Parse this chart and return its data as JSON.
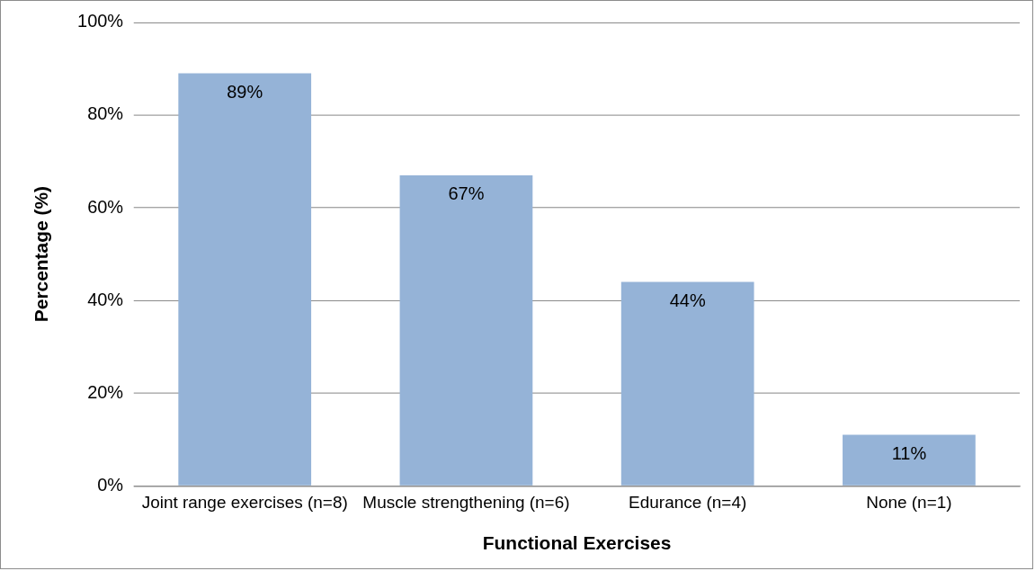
{
  "chart_data": {
    "type": "bar",
    "xlabel": "Functional Exercises",
    "ylabel": "Percentage (%)",
    "categories": [
      "Joint range exercises (n=8)",
      "Muscle strengthening (n=6)",
      "Edurance (n=4)",
      "None (n=1)"
    ],
    "values": [
      89,
      67,
      44,
      11
    ],
    "value_labels": [
      "89%",
      "67%",
      "44%",
      "11%"
    ],
    "color": "#95b3d7",
    "ylim": [
      0,
      100
    ],
    "yticks": [
      {
        "value": 0,
        "label": "0%"
      },
      {
        "value": 20,
        "label": "20%"
      },
      {
        "value": 40,
        "label": "40%"
      },
      {
        "value": 60,
        "label": "60%"
      },
      {
        "value": 80,
        "label": "80%"
      },
      {
        "value": 100,
        "label": "100%"
      }
    ],
    "grid": "y",
    "legend": false
  }
}
